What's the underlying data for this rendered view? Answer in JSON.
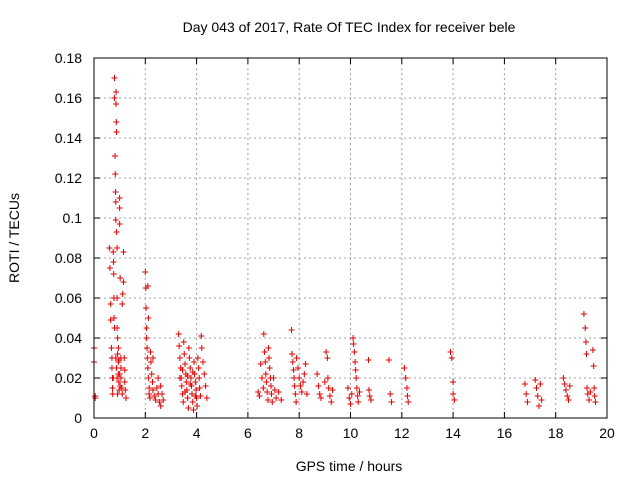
{
  "chart_data": {
    "type": "scatter",
    "title": "Day 043 of 2017, Rate Of TEC Index for receiver bele",
    "xlabel": "GPS time / hours",
    "ylabel": "ROTI / TECUs",
    "xlim": [
      0,
      20
    ],
    "ylim": [
      0,
      0.18
    ],
    "xticks": [
      0,
      2,
      4,
      6,
      8,
      10,
      12,
      14,
      16,
      18,
      20
    ],
    "yticks": [
      0,
      0.02,
      0.04,
      0.06,
      0.08,
      0.1,
      0.12,
      0.14,
      0.16,
      0.18
    ],
    "xtick_labels": [
      "0",
      "2",
      "4",
      "6",
      "8",
      "10",
      "12",
      "14",
      "16",
      "18",
      "20"
    ],
    "ytick_labels": [
      "0",
      "0.02",
      "0.04",
      "0.06",
      "0.08",
      "0.1",
      "0.12",
      "0.14",
      "0.16",
      "0.18"
    ],
    "grid": true,
    "marker": "+",
    "color": "#e00000",
    "points": [
      [
        0.0,
        0.035
      ],
      [
        0.0,
        0.028
      ],
      [
        0.05,
        0.011
      ],
      [
        0.05,
        0.01
      ],
      [
        0.6,
        0.085
      ],
      [
        0.62,
        0.075
      ],
      [
        0.65,
        0.057
      ],
      [
        0.65,
        0.049
      ],
      [
        0.68,
        0.035
      ],
      [
        0.7,
        0.03
      ],
      [
        0.7,
        0.025
      ],
      [
        0.72,
        0.02
      ],
      [
        0.72,
        0.015
      ],
      [
        0.73,
        0.012
      ],
      [
        0.75,
        0.02
      ],
      [
        0.75,
        0.083
      ],
      [
        0.76,
        0.078
      ],
      [
        0.77,
        0.072
      ],
      [
        0.78,
        0.06
      ],
      [
        0.78,
        0.05
      ],
      [
        0.8,
        0.045
      ],
      [
        0.8,
        0.17
      ],
      [
        0.8,
        0.16
      ],
      [
        0.82,
        0.131
      ],
      [
        0.83,
        0.122
      ],
      [
        0.84,
        0.113
      ],
      [
        0.85,
        0.108
      ],
      [
        0.85,
        0.099
      ],
      [
        0.86,
        0.163
      ],
      [
        0.86,
        0.157
      ],
      [
        0.87,
        0.148
      ],
      [
        0.88,
        0.143
      ],
      [
        0.88,
        0.093
      ],
      [
        0.9,
        0.085
      ],
      [
        0.9,
        0.06
      ],
      [
        0.9,
        0.045
      ],
      [
        0.92,
        0.04
      ],
      [
        0.92,
        0.032
      ],
      [
        0.95,
        0.028
      ],
      [
        0.95,
        0.022
      ],
      [
        0.97,
        0.018
      ],
      [
        0.98,
        0.014
      ],
      [
        1.0,
        0.11
      ],
      [
        1.0,
        0.105
      ],
      [
        1.0,
        0.097
      ],
      [
        1.02,
        0.07
      ],
      [
        1.05,
        0.03
      ],
      [
        1.05,
        0.025
      ],
      [
        1.05,
        0.02
      ],
      [
        1.08,
        0.015
      ],
      [
        1.1,
        0.012
      ],
      [
        1.1,
        0.057
      ],
      [
        1.12,
        0.062
      ],
      [
        1.15,
        0.083
      ],
      [
        1.15,
        0.068
      ],
      [
        1.18,
        0.03
      ],
      [
        1.2,
        0.024
      ],
      [
        1.2,
        0.018
      ],
      [
        1.22,
        0.014
      ],
      [
        1.25,
        0.01
      ],
      [
        0.85,
        0.03
      ],
      [
        0.88,
        0.025
      ],
      [
        0.9,
        0.02
      ],
      [
        0.92,
        0.012
      ],
      [
        0.95,
        0.035
      ],
      [
        0.97,
        0.029
      ],
      [
        1.0,
        0.022
      ],
      [
        1.02,
        0.016
      ],
      [
        2.0,
        0.073
      ],
      [
        2.02,
        0.065
      ],
      [
        2.03,
        0.055
      ],
      [
        2.05,
        0.045
      ],
      [
        2.05,
        0.04
      ],
      [
        2.07,
        0.035
      ],
      [
        2.08,
        0.03
      ],
      [
        2.1,
        0.025
      ],
      [
        2.12,
        0.02
      ],
      [
        2.15,
        0.015
      ],
      [
        2.15,
        0.012
      ],
      [
        2.18,
        0.01
      ],
      [
        2.2,
        0.033
      ],
      [
        2.22,
        0.028
      ],
      [
        2.25,
        0.022
      ],
      [
        2.28,
        0.018
      ],
      [
        2.3,
        0.014
      ],
      [
        2.35,
        0.011
      ],
      [
        2.4,
        0.009
      ],
      [
        2.45,
        0.015
      ],
      [
        2.5,
        0.02
      ],
      [
        2.5,
        0.012
      ],
      [
        2.55,
        0.008
      ],
      [
        2.6,
        0.016
      ],
      [
        2.6,
        0.006
      ],
      [
        2.65,
        0.012
      ],
      [
        2.7,
        0.009
      ],
      [
        2.1,
        0.066
      ],
      [
        2.12,
        0.05
      ],
      [
        2.3,
        0.03
      ],
      [
        3.3,
        0.042
      ],
      [
        3.32,
        0.036
      ],
      [
        3.35,
        0.03
      ],
      [
        3.38,
        0.025
      ],
      [
        3.4,
        0.02
      ],
      [
        3.42,
        0.016
      ],
      [
        3.45,
        0.012
      ],
      [
        3.48,
        0.008
      ],
      [
        3.5,
        0.038
      ],
      [
        3.52,
        0.032
      ],
      [
        3.55,
        0.027
      ],
      [
        3.58,
        0.022
      ],
      [
        3.6,
        0.018
      ],
      [
        3.62,
        0.014
      ],
      [
        3.65,
        0.01
      ],
      [
        3.68,
        0.005
      ],
      [
        3.7,
        0.035
      ],
      [
        3.72,
        0.03
      ],
      [
        3.75,
        0.025
      ],
      [
        3.78,
        0.02
      ],
      [
        3.8,
        0.016
      ],
      [
        3.82,
        0.012
      ],
      [
        3.85,
        0.008
      ],
      [
        3.88,
        0.004
      ],
      [
        3.9,
        0.028
      ],
      [
        3.92,
        0.022
      ],
      [
        3.95,
        0.018
      ],
      [
        3.98,
        0.014
      ],
      [
        4.0,
        0.01
      ],
      [
        4.02,
        0.006
      ],
      [
        4.05,
        0.03
      ],
      [
        4.08,
        0.025
      ],
      [
        4.1,
        0.02
      ],
      [
        4.12,
        0.015
      ],
      [
        4.15,
        0.011
      ],
      [
        4.18,
        0.041
      ],
      [
        4.2,
        0.035
      ],
      [
        4.25,
        0.028
      ],
      [
        4.3,
        0.022
      ],
      [
        4.35,
        0.016
      ],
      [
        4.4,
        0.01
      ],
      [
        3.35,
        0.02
      ],
      [
        3.45,
        0.024
      ],
      [
        3.55,
        0.013
      ],
      [
        3.65,
        0.021
      ],
      [
        3.75,
        0.017
      ],
      [
        3.85,
        0.023
      ],
      [
        3.95,
        0.011
      ],
      [
        6.4,
        0.013
      ],
      [
        6.45,
        0.011
      ],
      [
        6.5,
        0.027
      ],
      [
        6.55,
        0.02
      ],
      [
        6.6,
        0.015
      ],
      [
        6.62,
        0.042
      ],
      [
        6.65,
        0.033
      ],
      [
        6.68,
        0.028
      ],
      [
        6.7,
        0.022
      ],
      [
        6.72,
        0.018
      ],
      [
        6.75,
        0.013
      ],
      [
        6.78,
        0.009
      ],
      [
        6.8,
        0.035
      ],
      [
        6.82,
        0.03
      ],
      [
        6.85,
        0.025
      ],
      [
        6.88,
        0.02
      ],
      [
        6.9,
        0.016
      ],
      [
        6.92,
        0.012
      ],
      [
        6.95,
        0.008
      ],
      [
        7.0,
        0.02
      ],
      [
        7.05,
        0.014
      ],
      [
        7.1,
        0.01
      ],
      [
        7.2,
        0.013
      ],
      [
        7.3,
        0.009
      ],
      [
        7.7,
        0.044
      ],
      [
        7.72,
        0.032
      ],
      [
        7.75,
        0.028
      ],
      [
        7.78,
        0.024
      ],
      [
        7.8,
        0.02
      ],
      [
        7.82,
        0.016
      ],
      [
        7.85,
        0.012
      ],
      [
        7.88,
        0.008
      ],
      [
        7.9,
        0.03
      ],
      [
        7.95,
        0.025
      ],
      [
        8.0,
        0.02
      ],
      [
        8.05,
        0.016
      ],
      [
        8.1,
        0.013
      ],
      [
        8.15,
        0.018
      ],
      [
        8.2,
        0.022
      ],
      [
        8.25,
        0.027
      ],
      [
        8.3,
        0.012
      ],
      [
        8.7,
        0.022
      ],
      [
        8.75,
        0.016
      ],
      [
        8.8,
        0.012
      ],
      [
        8.85,
        0.01
      ],
      [
        9.0,
        0.018
      ],
      [
        9.05,
        0.033
      ],
      [
        9.1,
        0.03
      ],
      [
        9.12,
        0.02
      ],
      [
        9.15,
        0.015
      ],
      [
        9.2,
        0.011
      ],
      [
        9.25,
        0.008
      ],
      [
        9.3,
        0.014
      ],
      [
        9.9,
        0.015
      ],
      [
        9.95,
        0.01
      ],
      [
        10.0,
        0.007
      ],
      [
        10.05,
        0.012
      ],
      [
        10.1,
        0.04
      ],
      [
        10.12,
        0.037
      ],
      [
        10.15,
        0.033
      ],
      [
        10.18,
        0.028
      ],
      [
        10.2,
        0.024
      ],
      [
        10.22,
        0.02
      ],
      [
        10.25,
        0.015
      ],
      [
        10.28,
        0.011
      ],
      [
        10.3,
        0.008
      ],
      [
        10.35,
        0.013
      ],
      [
        10.7,
        0.029
      ],
      [
        10.72,
        0.014
      ],
      [
        10.75,
        0.011
      ],
      [
        10.8,
        0.009
      ],
      [
        11.5,
        0.029
      ],
      [
        11.55,
        0.012
      ],
      [
        11.6,
        0.008
      ],
      [
        12.1,
        0.025
      ],
      [
        12.15,
        0.02
      ],
      [
        12.2,
        0.015
      ],
      [
        12.22,
        0.011
      ],
      [
        12.25,
        0.008
      ],
      [
        13.9,
        0.033
      ],
      [
        13.95,
        0.03
      ],
      [
        14.0,
        0.018
      ],
      [
        14.0,
        0.012
      ],
      [
        14.05,
        0.009
      ],
      [
        16.8,
        0.017
      ],
      [
        16.85,
        0.012
      ],
      [
        16.9,
        0.008
      ],
      [
        17.2,
        0.019
      ],
      [
        17.25,
        0.015
      ],
      [
        17.3,
        0.011
      ],
      [
        17.35,
        0.006
      ],
      [
        17.4,
        0.017
      ],
      [
        17.45,
        0.009
      ],
      [
        18.3,
        0.02
      ],
      [
        18.35,
        0.017
      ],
      [
        18.4,
        0.014
      ],
      [
        18.45,
        0.011
      ],
      [
        18.5,
        0.009
      ],
      [
        18.55,
        0.016
      ],
      [
        19.1,
        0.052
      ],
      [
        19.15,
        0.045
      ],
      [
        19.18,
        0.038
      ],
      [
        19.2,
        0.032
      ],
      [
        19.22,
        0.015
      ],
      [
        19.25,
        0.012
      ],
      [
        19.3,
        0.009
      ],
      [
        19.35,
        0.013
      ],
      [
        19.45,
        0.034
      ],
      [
        19.48,
        0.026
      ],
      [
        19.5,
        0.015
      ],
      [
        19.52,
        0.011
      ],
      [
        19.55,
        0.008
      ]
    ]
  }
}
